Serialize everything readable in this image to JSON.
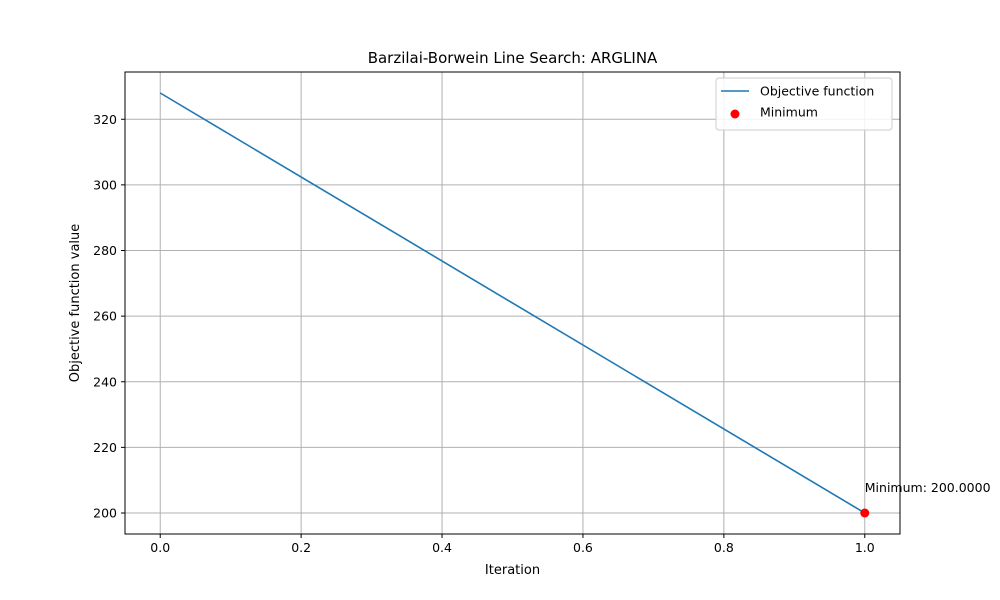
{
  "chart_data": {
    "type": "line",
    "title": "Barzilai-Borwein Line Search: ARGLINA",
    "xlabel": "Iteration",
    "ylabel": "Objective function value",
    "xlim": [
      -0.05,
      1.05
    ],
    "ylim": [
      193.6,
      334.4
    ],
    "xticks": [
      0.0,
      0.2,
      0.4,
      0.6,
      0.8,
      1.0
    ],
    "xtick_labels": [
      "0.0",
      "0.2",
      "0.4",
      "0.6",
      "0.8",
      "1.0"
    ],
    "yticks": [
      200,
      220,
      240,
      260,
      280,
      300,
      320
    ],
    "ytick_labels": [
      "200",
      "220",
      "240",
      "260",
      "280",
      "300",
      "320"
    ],
    "grid": true,
    "legend_position": "top-right",
    "series": [
      {
        "name": "Objective function",
        "kind": "line",
        "color": "#1f77b4",
        "x": [
          0,
          1
        ],
        "y": [
          328,
          200
        ]
      },
      {
        "name": "Minimum",
        "kind": "scatter",
        "color": "#ff0000",
        "x": [
          1
        ],
        "y": [
          200
        ]
      }
    ],
    "annotations": [
      {
        "text": "Minimum: 200.0000",
        "x": 1,
        "y": 200
      }
    ]
  }
}
